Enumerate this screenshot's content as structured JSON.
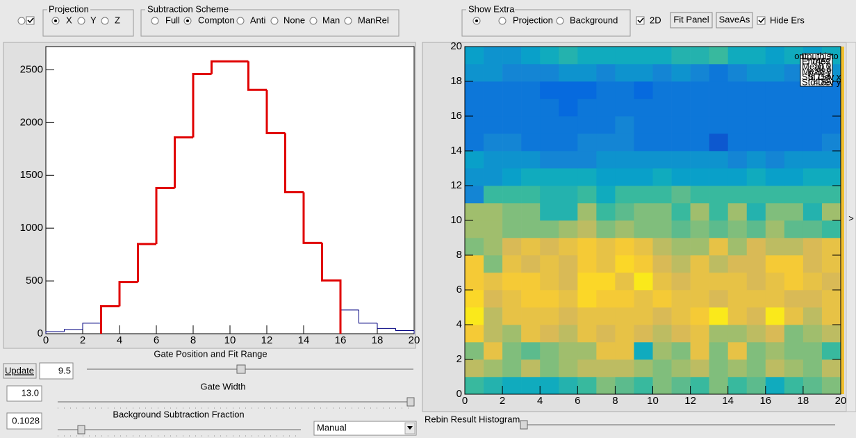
{
  "toolbar": {
    "projection": {
      "title": "Projection",
      "options": [
        {
          "label": "X",
          "checked": true
        },
        {
          "label": "Y",
          "checked": false
        },
        {
          "label": "Z",
          "checked": false
        }
      ]
    },
    "subtraction": {
      "title": "Subtraction Scheme",
      "options": [
        {
          "label": "Full",
          "checked": false
        },
        {
          "label": "Compton",
          "checked": true
        },
        {
          "label": "Anti",
          "checked": false
        },
        {
          "label": "None",
          "checked": false
        },
        {
          "label": "Man",
          "checked": false
        },
        {
          "label": "ManRel",
          "checked": false
        }
      ]
    },
    "show_extra": {
      "title": "Show Extra",
      "options": [
        {
          "label": "Projection",
          "checked": false
        },
        {
          "label": "Background",
          "checked": false
        }
      ]
    },
    "check_2d": "2D",
    "fit_panel": "Fit Panel",
    "save_as": "SaveAs",
    "hide_ers": "Hide Ers"
  },
  "controls": {
    "gate_label": "Gate Position and Fit Range",
    "update": "Update",
    "gate_position": "9.5",
    "gate_width_label": "Gate Width",
    "gate_width": "13.0",
    "bg_label": "Background Subtraction Fraction",
    "bg_fraction": "0.1028",
    "mode": "Manual",
    "rebin_label": "Rebin Result Histogram"
  },
  "chart_data": [
    {
      "type": "histogram",
      "bins": [
        0,
        1,
        2,
        3,
        4,
        5,
        6,
        7,
        8,
        9,
        10,
        11,
        12,
        13,
        14,
        15,
        16,
        17,
        18,
        19,
        20
      ],
      "series": [
        {
          "color": "#000080",
          "values": [
            20,
            40,
            100,
            260,
            490,
            850,
            1380,
            1860,
            2460,
            2580,
            2580,
            2310,
            1900,
            1340,
            860,
            505,
            225,
            100,
            50,
            30
          ]
        },
        {
          "color": "#e00000",
          "values": [
            null,
            null,
            null,
            260,
            490,
            850,
            1380,
            1860,
            2460,
            2580,
            2580,
            2310,
            1900,
            1340,
            860,
            505,
            null,
            null,
            null,
            null
          ]
        }
      ],
      "xlim": [
        0,
        20
      ],
      "xticks": [
        0,
        2,
        4,
        6,
        8,
        10,
        12,
        14,
        16,
        18,
        20
      ],
      "ylim": [
        0,
        2720
      ],
      "yticks": [
        0,
        500,
        1000,
        1500,
        2000,
        2500
      ]
    },
    {
      "type": "heatmap",
      "xlim": [
        0,
        20
      ],
      "ylim": [
        0,
        20
      ],
      "zlim": [
        0,
        10
      ],
      "xticks": [
        0,
        2,
        4,
        6,
        8,
        10,
        12,
        14,
        16,
        18,
        20
      ],
      "yticks": [
        0,
        2,
        4,
        6,
        8,
        10,
        12,
        14,
        16,
        18,
        20
      ],
      "z": [
        [
          5,
          4.5,
          4,
          4,
          4,
          4.5,
          5,
          6,
          5.5,
          5,
          6,
          5.5,
          5,
          6,
          5,
          5.5,
          4,
          5,
          5.5,
          6
        ],
        [
          7,
          6.5,
          6,
          7,
          6,
          6.5,
          7,
          7,
          7,
          6.5,
          6,
          6.5,
          7,
          6,
          6.5,
          6,
          7,
          6.5,
          6,
          7
        ],
        [
          6,
          8,
          6,
          5.5,
          6,
          6.5,
          6.5,
          8,
          8,
          4,
          6.5,
          6,
          8,
          6,
          8,
          6,
          6.5,
          6,
          6,
          5
        ],
        [
          8.5,
          7,
          6.5,
          8,
          7.5,
          7,
          8,
          7.5,
          8,
          7.5,
          7,
          7.5,
          8,
          6.5,
          6.5,
          7,
          7.5,
          6,
          6.5,
          7
        ],
        [
          9.5,
          7,
          8,
          8,
          8,
          7.5,
          8,
          8,
          8,
          8,
          7.5,
          8,
          8.5,
          9.5,
          8,
          7.5,
          9.5,
          8,
          7,
          8
        ],
        [
          9,
          7.5,
          8,
          8.5,
          8.5,
          8,
          9,
          8.5,
          8.5,
          8,
          8.5,
          8,
          8,
          7.5,
          8,
          8,
          8,
          7.5,
          7.5,
          8
        ],
        [
          8.5,
          8,
          8.5,
          8.5,
          8,
          7.5,
          9,
          9,
          8,
          9.5,
          8,
          7.5,
          8,
          8,
          8,
          7.5,
          8,
          8.5,
          8,
          7.5
        ],
        [
          8.5,
          6,
          8,
          7.5,
          8,
          7.5,
          8.5,
          8,
          9,
          8.5,
          7.5,
          7,
          8,
          7,
          7.5,
          7.5,
          8.5,
          8.5,
          7.5,
          8
        ],
        [
          6,
          6.5,
          7.5,
          8,
          7.5,
          8,
          8.5,
          8,
          8.5,
          8,
          7,
          6.5,
          6.5,
          8,
          6.5,
          7.5,
          7,
          7,
          7.5,
          8
        ],
        [
          6.5,
          6.5,
          6,
          6,
          6,
          6.5,
          7,
          6,
          6.5,
          6,
          6,
          5.5,
          6,
          5.5,
          6,
          5.5,
          6.5,
          5.5,
          5.5,
          5
        ],
        [
          6.5,
          6.5,
          6,
          6,
          4.5,
          4.5,
          6.5,
          5,
          5.5,
          6,
          6,
          5,
          6.5,
          5,
          6.5,
          4.5,
          6,
          6,
          4.5,
          6.5
        ],
        [
          2.5,
          5,
          5,
          5,
          4.5,
          4.5,
          5,
          4,
          5,
          5,
          5,
          5.5,
          5,
          5,
          5,
          5,
          5,
          5,
          5,
          5
        ],
        [
          3,
          3,
          3.5,
          4,
          4,
          4,
          4,
          3.5,
          3.5,
          3.5,
          4,
          3.5,
          3.5,
          3.5,
          3.5,
          4,
          3.5,
          3.5,
          4,
          4
        ],
        [
          3.5,
          3,
          3,
          3,
          2.5,
          2.5,
          2.5,
          3,
          3,
          3,
          3,
          3,
          3,
          3,
          2.5,
          3,
          2.5,
          3,
          3,
          3
        ],
        [
          2,
          2.5,
          2.5,
          2,
          2,
          2,
          2.5,
          2.5,
          2.5,
          2,
          2,
          2,
          2,
          1,
          2,
          2,
          2,
          2,
          2,
          2.5
        ],
        [
          2,
          2,
          2,
          2,
          2,
          2,
          2,
          2,
          2.5,
          2,
          2,
          2,
          2,
          2,
          2,
          2,
          2,
          2,
          2,
          2
        ],
        [
          2,
          2,
          2,
          2,
          2,
          1.5,
          2,
          2,
          2,
          2,
          2,
          2,
          2,
          2,
          2,
          2,
          2,
          2,
          2,
          2
        ],
        [
          2,
          2,
          2,
          2,
          1.5,
          1.5,
          1.5,
          2,
          2,
          1.5,
          2,
          2,
          2,
          2,
          2,
          2,
          2,
          2,
          2,
          2
        ],
        [
          3,
          3,
          2.5,
          2.5,
          2.5,
          3,
          3,
          2.5,
          3,
          3,
          2.5,
          3,
          2.5,
          2,
          2.5,
          3,
          3,
          2.5,
          3,
          3
        ],
        [
          3.5,
          3,
          3,
          3.5,
          4,
          4.5,
          4,
          4,
          4,
          4,
          4,
          4.5,
          4.5,
          5,
          4,
          4,
          3.5,
          4,
          3.5,
          4
        ]
      ],
      "stats": {
        "title": "outputhisto",
        "rows": [
          [
            "Entries",
            "7452"
          ],
          [
            "Mean x",
            "10.0"
          ],
          [
            "Mean y",
            "6.888"
          ],
          [
            "Std Dev x",
            "5.754"
          ],
          [
            "Std Dev y",
            "4.88"
          ]
        ]
      }
    }
  ]
}
